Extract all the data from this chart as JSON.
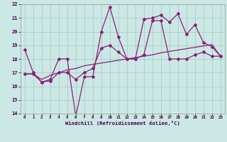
{
  "xlabel": "Windchill (Refroidissement éolien,°C)",
  "xlim": [
    -0.5,
    23.5
  ],
  "ylim": [
    14,
    22
  ],
  "xticks": [
    0,
    1,
    2,
    3,
    4,
    5,
    6,
    7,
    8,
    9,
    10,
    11,
    12,
    13,
    14,
    15,
    16,
    17,
    18,
    19,
    20,
    21,
    22,
    23
  ],
  "yticks": [
    14,
    15,
    16,
    17,
    18,
    19,
    20,
    21,
    22
  ],
  "bg_color": "#cce8e4",
  "grid_color": "#aacccc",
  "line_color": "#882277",
  "line1_x": [
    0,
    1,
    2,
    3,
    4,
    5,
    6,
    7,
    8,
    9,
    10,
    11,
    12,
    13,
    14,
    15,
    16,
    17,
    18,
    19,
    20,
    21,
    22,
    23
  ],
  "line1_y": [
    18.7,
    17.0,
    16.3,
    16.5,
    18.0,
    18.0,
    13.8,
    16.7,
    16.7,
    20.0,
    21.8,
    19.6,
    18.0,
    18.0,
    20.9,
    21.0,
    21.2,
    20.7,
    21.3,
    19.8,
    20.5,
    19.2,
    18.9,
    18.2
  ],
  "line2_x": [
    0,
    1,
    2,
    3,
    4,
    5,
    6,
    7,
    8,
    9,
    10,
    11,
    12,
    13,
    14,
    15,
    16,
    17,
    18,
    19,
    20,
    21,
    22,
    23
  ],
  "line2_y": [
    16.9,
    16.9,
    16.3,
    16.4,
    17.0,
    17.0,
    16.5,
    17.0,
    17.3,
    18.8,
    19.0,
    18.5,
    18.0,
    18.0,
    18.3,
    20.8,
    20.8,
    18.0,
    18.0,
    18.0,
    18.3,
    18.5,
    18.2,
    18.2
  ],
  "line3_x": [
    0,
    1,
    2,
    3,
    4,
    5,
    6,
    7,
    8,
    9,
    10,
    11,
    12,
    13,
    14,
    15,
    16,
    17,
    18,
    19,
    20,
    21,
    22,
    23
  ],
  "line3_y": [
    16.9,
    16.9,
    16.5,
    16.8,
    17.0,
    17.2,
    17.3,
    17.5,
    17.6,
    17.7,
    17.8,
    17.9,
    18.0,
    18.1,
    18.2,
    18.3,
    18.45,
    18.55,
    18.65,
    18.75,
    18.85,
    18.95,
    19.05,
    18.2
  ]
}
